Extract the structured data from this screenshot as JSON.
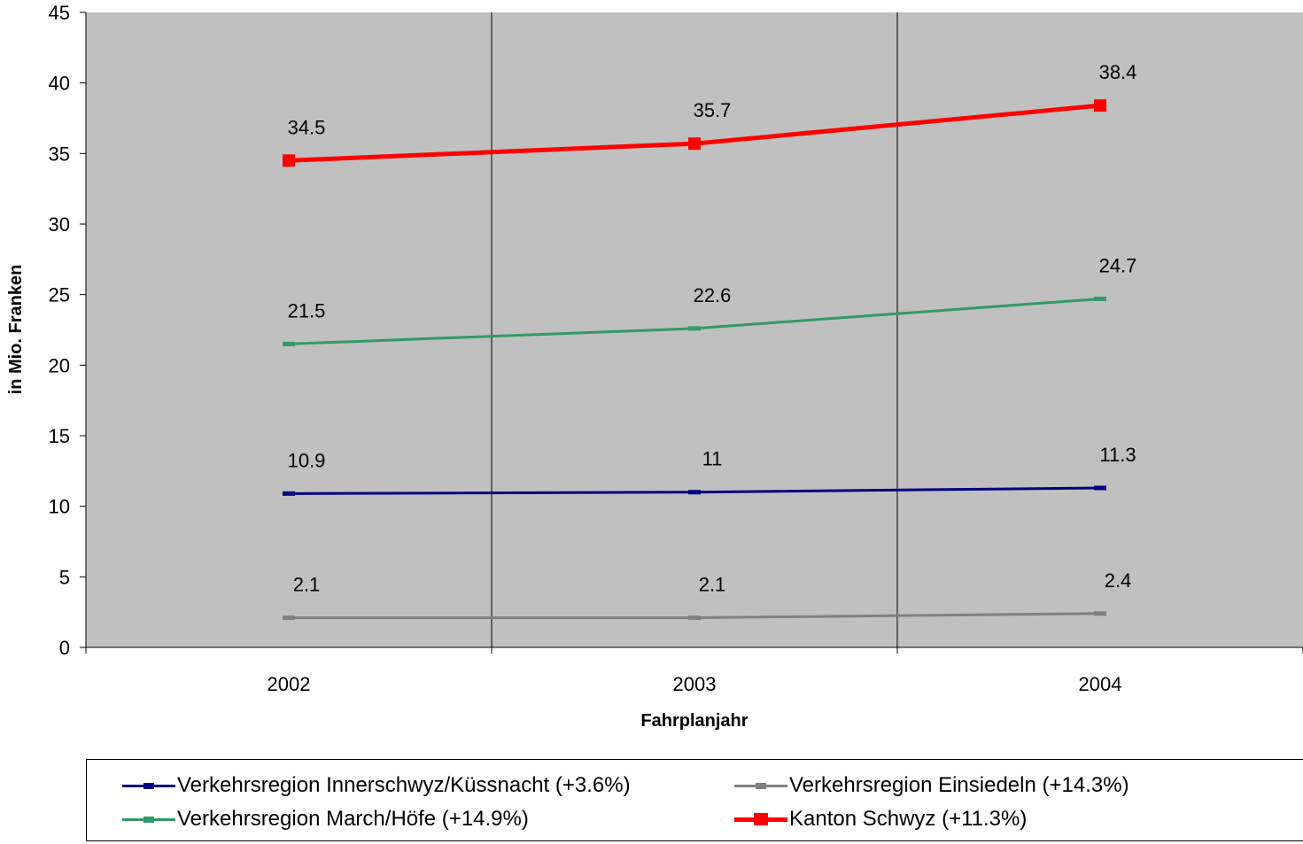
{
  "chart_data": {
    "type": "line",
    "categories": [
      "2002",
      "2003",
      "2004"
    ],
    "xlabel": "Fahrplanjahr",
    "ylabel": "in Mio. Franken",
    "ylim": [
      0,
      45
    ],
    "yticks": [
      0,
      5,
      10,
      15,
      20,
      25,
      30,
      35,
      40,
      45
    ],
    "grid": "vertical",
    "plot_background": "#c0c0c0",
    "series": [
      {
        "name": "Verkehrsregion Innerschwyz/Küssnacht (+3.6%)",
        "values": [
          10.9,
          11,
          11.3
        ],
        "labels": [
          "10.9",
          "11",
          "11.3"
        ],
        "color": "#000080"
      },
      {
        "name": "Verkehrsregion Einsiedeln (+14.3%)",
        "values": [
          2.1,
          2.1,
          2.4
        ],
        "labels": [
          "2.1",
          "2.1",
          "2.4"
        ],
        "color": "#808080"
      },
      {
        "name": "Verkehrsregion March/Höfe (+14.9%)",
        "values": [
          21.5,
          22.6,
          24.7
        ],
        "labels": [
          "21.5",
          "22.6",
          "24.7"
        ],
        "color": "#339966"
      },
      {
        "name": "Kanton Schwyz (+11.3%)",
        "values": [
          34.5,
          35.7,
          38.4
        ],
        "labels": [
          "34.5",
          "35.7",
          "38.4"
        ],
        "color": "#ff0000"
      }
    ],
    "legend": "bottom"
  }
}
